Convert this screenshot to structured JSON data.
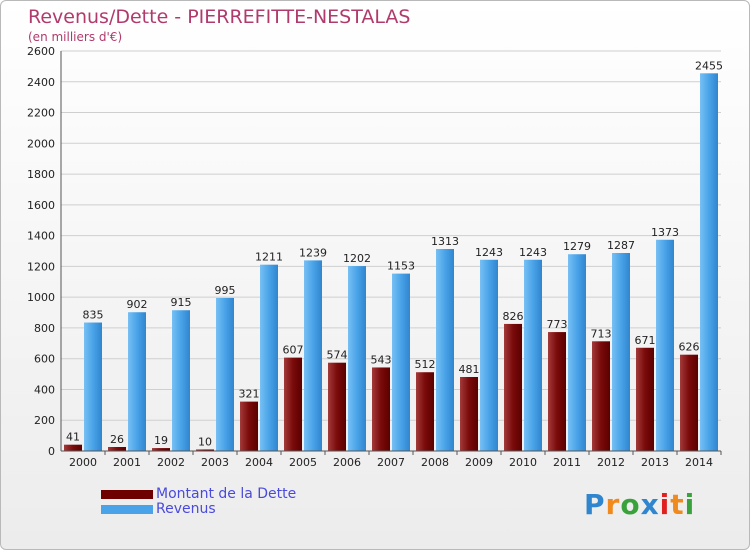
{
  "header": {
    "title": "Revenus/Dette - PIERREFITTE-NESTALAS",
    "subtitle": "(en milliers d'€)"
  },
  "legend": {
    "items": [
      {
        "label": "Montant de la Dette",
        "color": "#6e0000"
      },
      {
        "label": "Revenus",
        "color": "#4aa3e8"
      }
    ]
  },
  "logo": {
    "text": "Proxiti"
  },
  "colors": {
    "debt": "#6e0000",
    "revenue": "#4aa3e8",
    "title": "#b13a6d"
  },
  "chart_data": {
    "type": "bar",
    "categories": [
      "2000",
      "2001",
      "2002",
      "2003",
      "2004",
      "2005",
      "2006",
      "2007",
      "2008",
      "2009",
      "2010",
      "2011",
      "2012",
      "2013",
      "2014"
    ],
    "series": [
      {
        "name": "Montant de la Dette",
        "values": [
          41,
          26,
          19,
          10,
          321,
          607,
          574,
          543,
          512,
          481,
          826,
          773,
          713,
          671,
          626
        ]
      },
      {
        "name": "Revenus",
        "values": [
          835,
          902,
          915,
          995,
          1211,
          1239,
          1202,
          1153,
          1313,
          1243,
          1243,
          1279,
          1287,
          1373,
          2455
        ]
      }
    ],
    "ylim": [
      0,
      2600
    ],
    "yticks": [
      0,
      200,
      400,
      600,
      800,
      1000,
      1200,
      1400,
      1600,
      1800,
      2000,
      2200,
      2400,
      2600
    ],
    "grid": true
  }
}
